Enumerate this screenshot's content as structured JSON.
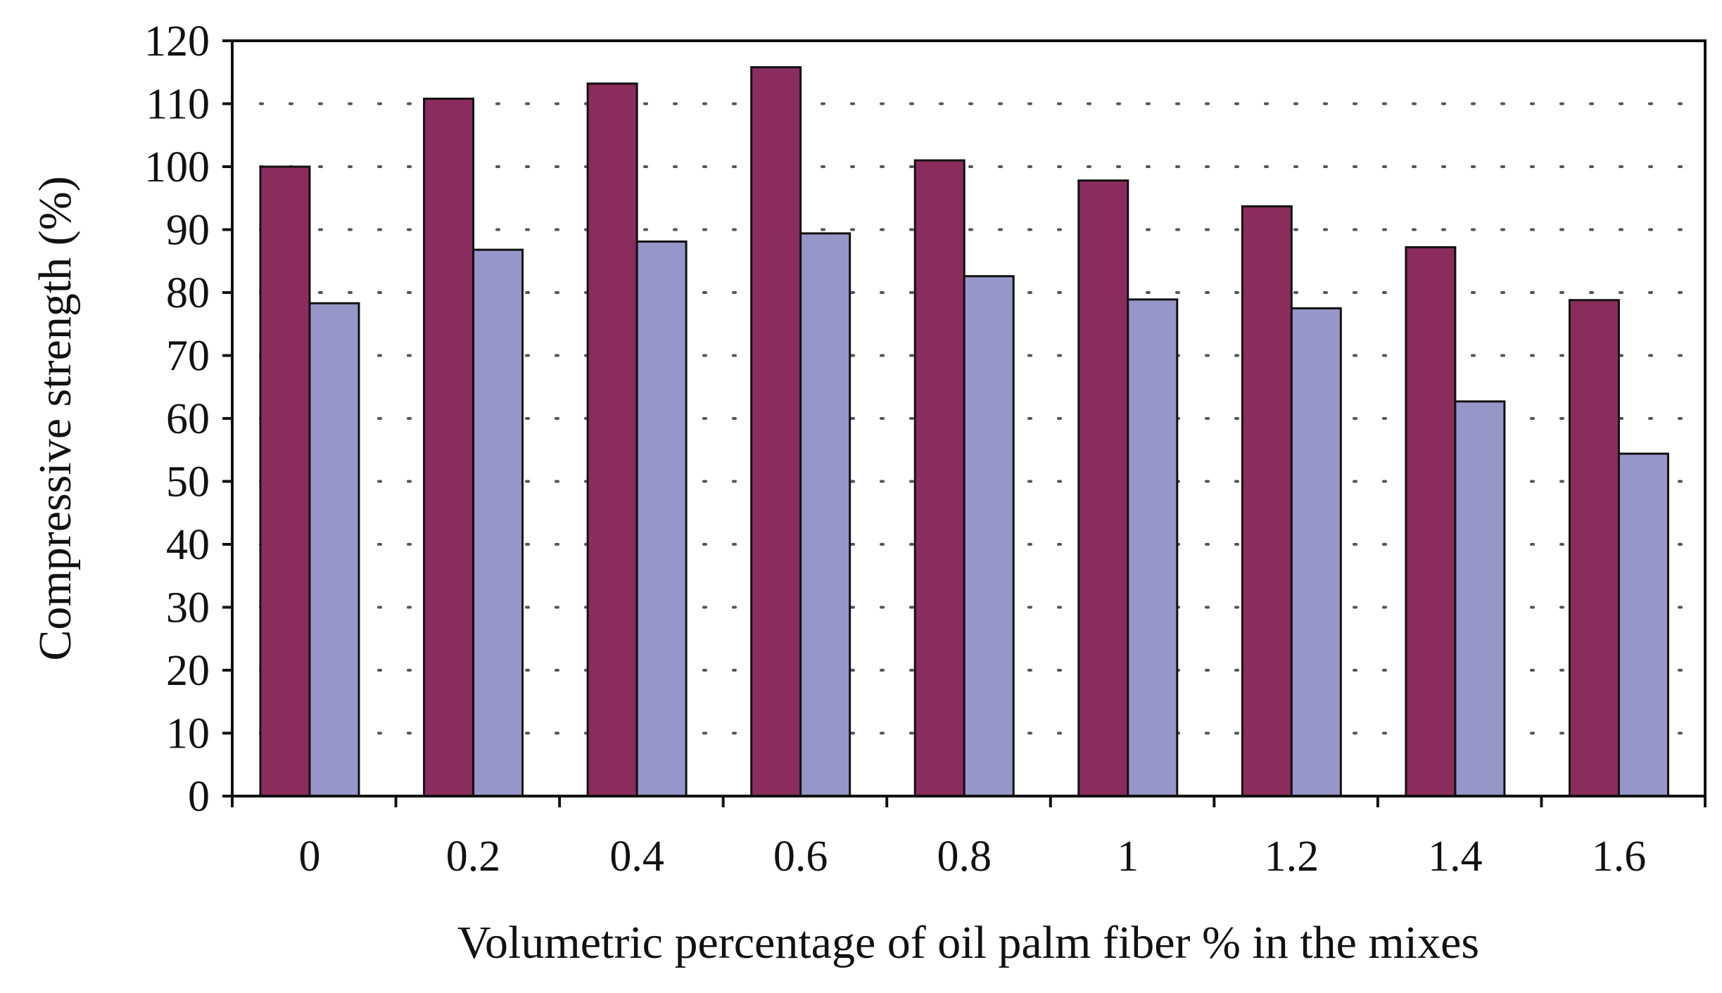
{
  "chart_data": {
    "type": "bar",
    "title": "",
    "xlabel": "Volumetric percentage of oil palm fiber % in the mixes",
    "ylabel": "Compressive strength (%)",
    "ylim": [
      0,
      120
    ],
    "yticks": [
      0,
      10,
      20,
      30,
      40,
      50,
      60,
      70,
      80,
      90,
      100,
      110,
      120
    ],
    "grid": "horizontal dotted",
    "legend": "none",
    "categories": [
      "0",
      "0.2",
      "0.4",
      "0.6",
      "0.8",
      "1",
      "1.2",
      "1.4",
      "1.6"
    ],
    "series": [
      {
        "name": "Series 1",
        "color": "#8b2d5c",
        "values": [
          100,
          110.8,
          113.2,
          115.8,
          101,
          97.8,
          93.7,
          87.2,
          78.8
        ]
      },
      {
        "name": "Series 2",
        "color": "#9796c9",
        "values": [
          78.3,
          86.8,
          88.1,
          89.4,
          82.6,
          78.9,
          77.5,
          62.7,
          54.4
        ]
      }
    ]
  }
}
